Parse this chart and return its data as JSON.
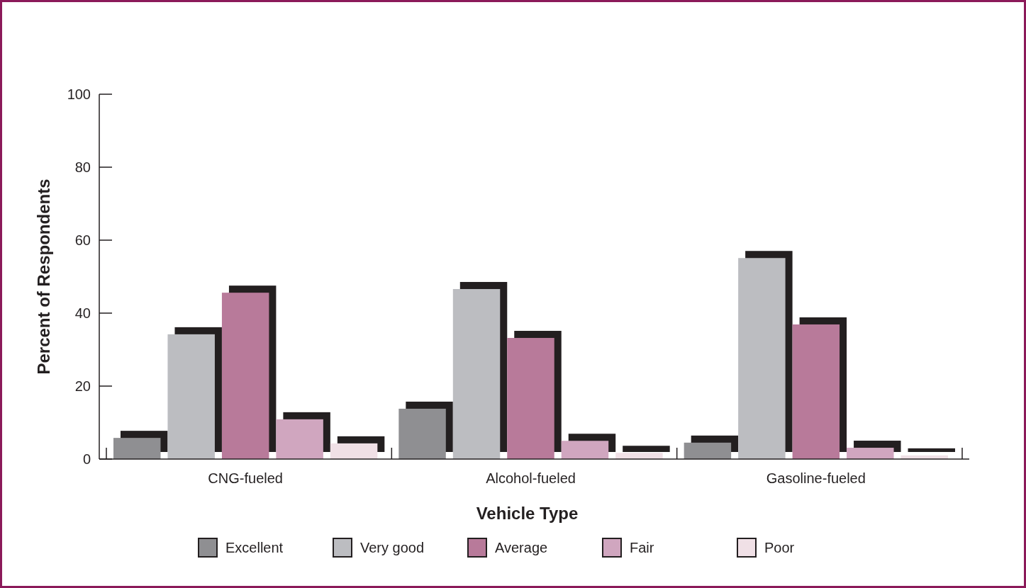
{
  "chart_data": {
    "type": "bar",
    "xlabel": "Vehicle Type",
    "ylabel": "Percent of Respondents",
    "categories": [
      "CNG-fueled",
      "Alcohol-fueled",
      "Gasoline-fueled"
    ],
    "series": [
      {
        "name": "Excellent",
        "color": "#8f8f92",
        "values": [
          5.8,
          13.8,
          4.5
        ]
      },
      {
        "name": "Very good",
        "color": "#bcbdc1",
        "values": [
          34.2,
          46.6,
          55.1
        ]
      },
      {
        "name": "Average",
        "color": "#b87a9a",
        "values": [
          45.6,
          33.2,
          36.9
        ]
      },
      {
        "name": "Fair",
        "color": "#d0a6bf",
        "values": [
          10.9,
          5,
          3.1
        ]
      },
      {
        "name": "Poor",
        "color": "#f0e0e6",
        "values": [
          4.3,
          1.7,
          1
        ]
      }
    ],
    "ylim": [
      0,
      100
    ],
    "yticks": [
      0,
      20,
      40,
      60,
      80,
      100
    ],
    "grid": false,
    "legend": "bottom"
  }
}
